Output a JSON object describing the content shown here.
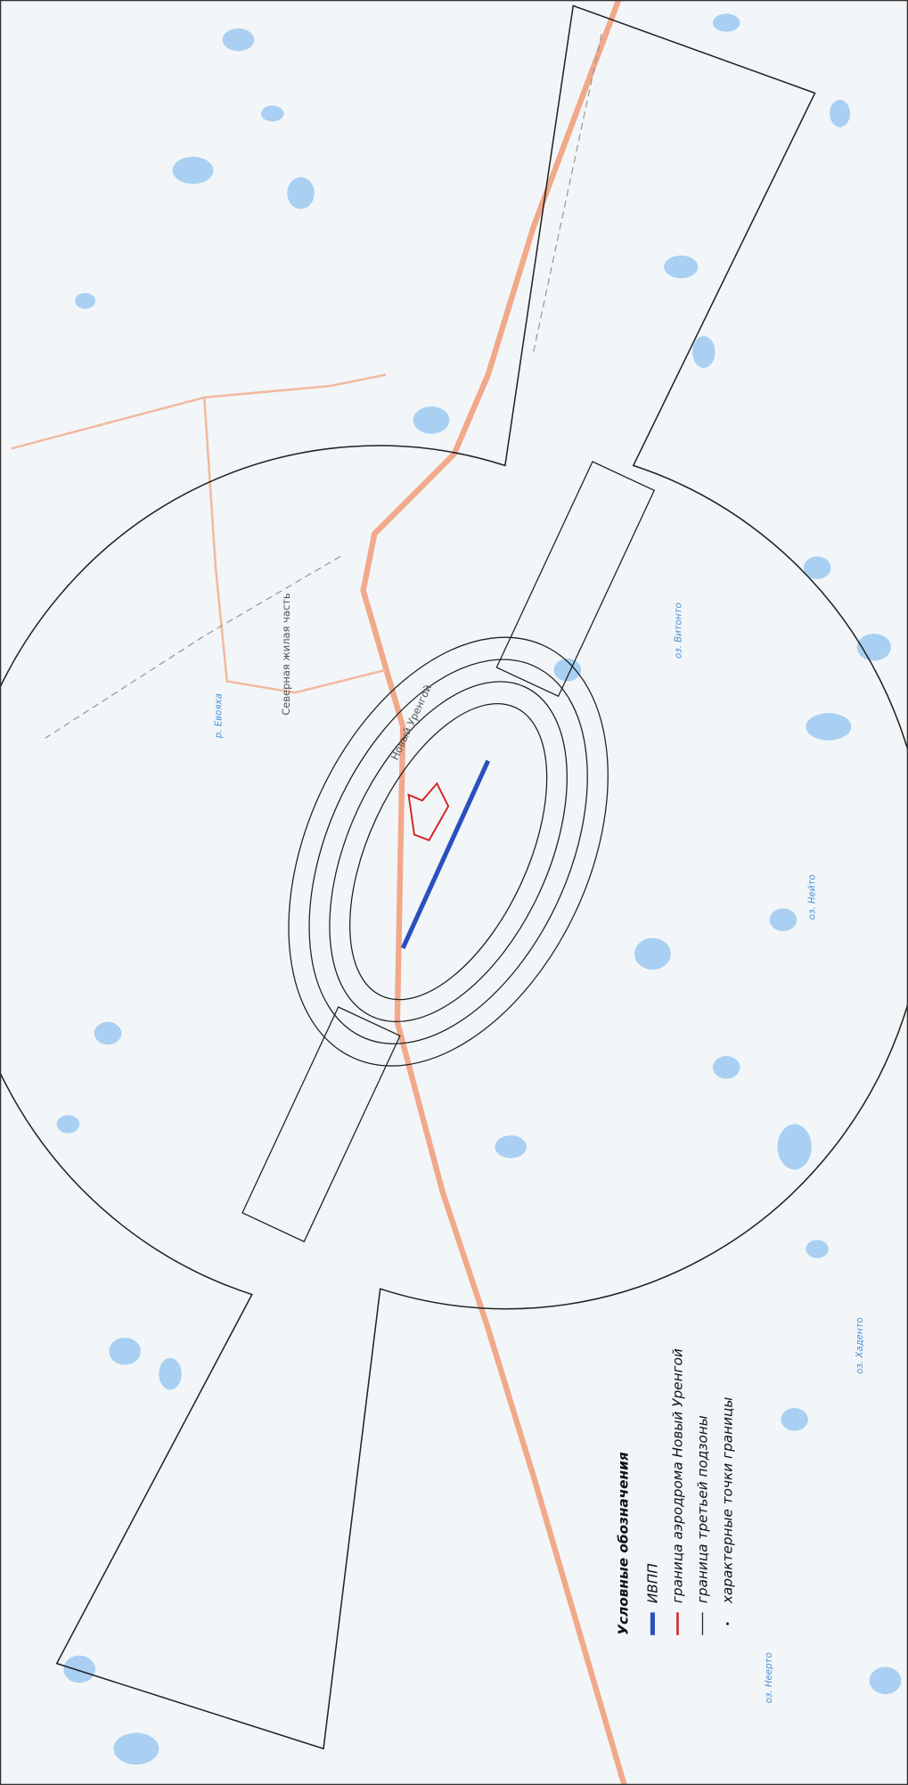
{
  "legend": {
    "title": "Условные обозначения",
    "items": [
      "ИВПП",
      "граница аэродрома Новый Уренгой",
      "граница третьей подзоны",
      "характерные точки границы"
    ]
  },
  "places": {
    "city": "Новый Уренгой",
    "district": "Северная жилая часть",
    "river": "р. Евояха",
    "lakes": [
      "оз. Витонто",
      "оз. Нейто",
      "оз. Хаденто",
      "оз. Неерто"
    ]
  }
}
